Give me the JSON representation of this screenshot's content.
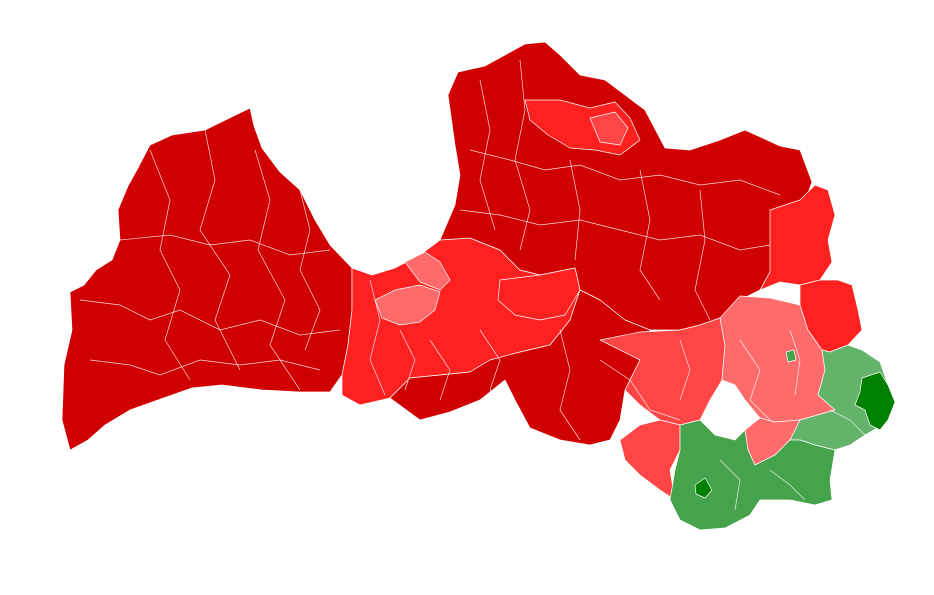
{
  "map": {
    "country": "Latvia",
    "colors": {
      "red_darkest": "#d10000",
      "red_strong": "#ff2020",
      "red_medium": "#ff4545",
      "red_light": "#ff6a6a",
      "green_light": "#63b36a",
      "green_medium": "#45a34b",
      "green_dark": "#008000",
      "border": "#ffffff",
      "background": "#ffffff"
    }
  }
}
